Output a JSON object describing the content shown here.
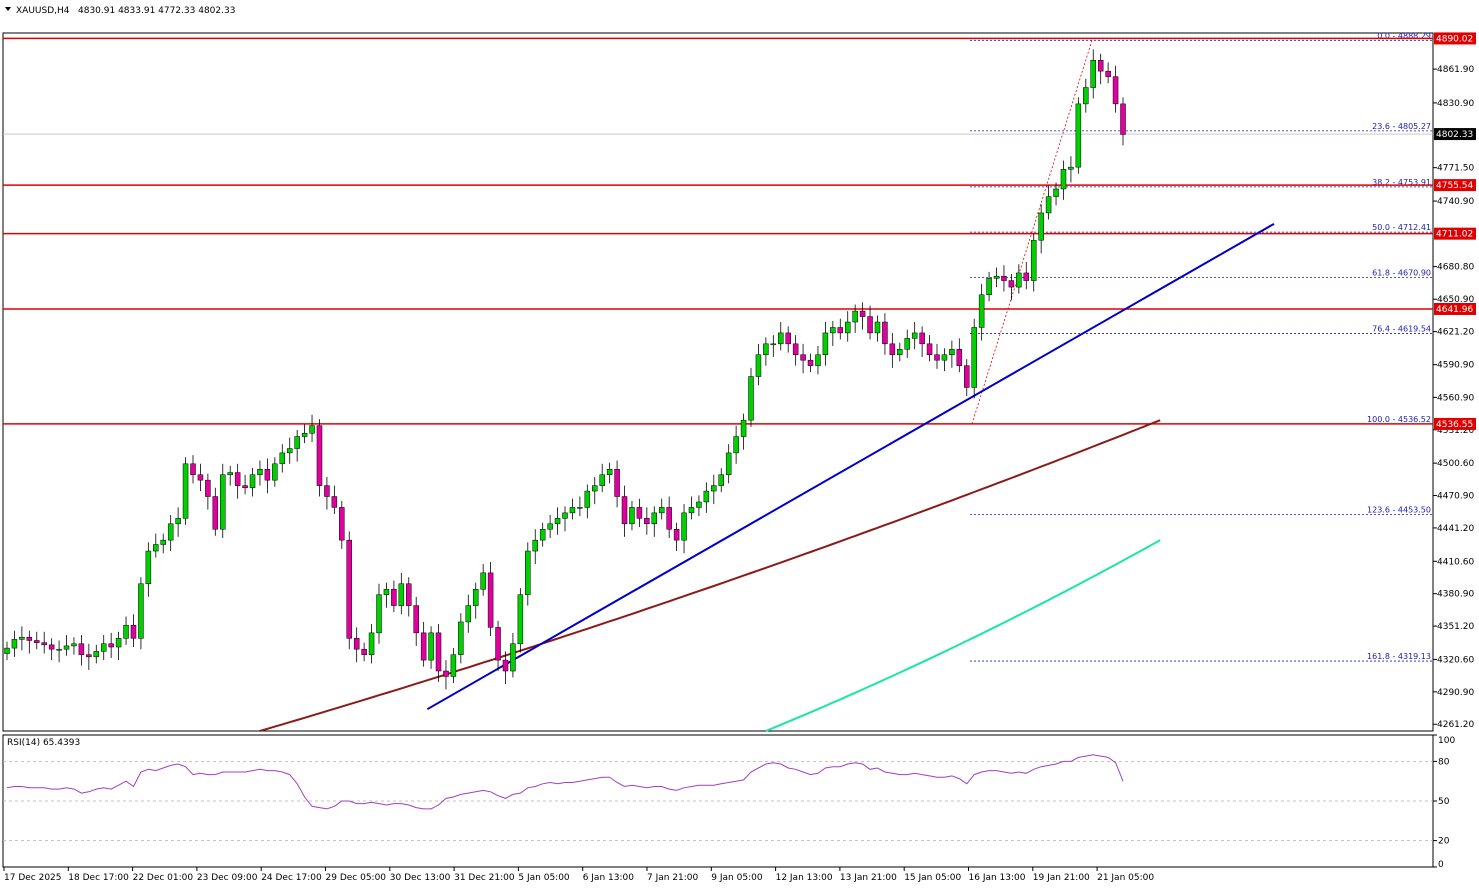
{
  "header": {
    "symbol": "XAUUSD,H4",
    "ohlc": "4830.91 4833.91 4772.33 4802.33"
  },
  "colors": {
    "bull_candle": "#00d000",
    "bear_candle": "#e000a0",
    "support_line": "#e00000",
    "trend_line": "#0000c8",
    "ma_slow": "#8b1a1a",
    "ma_fast": "#19e6a8",
    "fib_line": "#1c1cb4",
    "rsi_line": "#a040c0",
    "price_tag_red": "#e00000",
    "price_tag_black": "#000000"
  },
  "chart_data": {
    "type": "candlestick",
    "symbol": "XAUUSD",
    "timeframe": "H4",
    "ylim": [
      4255,
      4895
    ],
    "y_ticks": [
      "4861.90",
      "4830.90",
      "4771.50",
      "4740.90",
      "4680.80",
      "4650.90",
      "4621.20",
      "4590.90",
      "4560.90",
      "4531.20",
      "4500.60",
      "4470.90",
      "4441.20",
      "4410.60",
      "4380.90",
      "4351.20",
      "4320.60",
      "4290.90",
      "4261.20"
    ],
    "x_labels": [
      "17 Dec 2025",
      "18 Dec 17:00",
      "22 Dec 01:00",
      "23 Dec 09:00",
      "24 Dec 17:00",
      "29 Dec 05:00",
      "30 Dec 13:00",
      "31 Dec 21:00",
      "5 Jan 05:00",
      "6 Jan 13:00",
      "7 Jan 21:00",
      "9 Jan 05:00",
      "12 Jan 13:00",
      "13 Jan 21:00",
      "15 Jan 05:00",
      "16 Jan 13:00",
      "19 Jan 21:00",
      "21 Jan 05:00"
    ],
    "closes": [
      4331,
      4339,
      4341,
      4338,
      4336,
      4334,
      4330,
      4330,
      4333,
      4335,
      4325,
      4323,
      4328,
      4335,
      4332,
      4340,
      4352,
      4340,
      4390,
      4420,
      4426,
      4430,
      4445,
      4450,
      4500,
      4490,
      4485,
      4470,
      4440,
      4490,
      4492,
      4480,
      4478,
      4490,
      4495,
      4485,
      4500,
      4510,
      4514,
      4525,
      4528,
      4535,
      4480,
      4470,
      4460,
      4430,
      4340,
      4330,
      4325,
      4345,
      4380,
      4385,
      4370,
      4390,
      4370,
      4345,
      4320,
      4345,
      4310,
      4305,
      4325,
      4355,
      4370,
      4385,
      4400,
      4350,
      4320,
      4310,
      4335,
      4380,
      4420,
      4430,
      4440,
      4445,
      4450,
      4455,
      4460,
      4460,
      4475,
      4480,
      4490,
      4495,
      4470,
      4445,
      4460,
      4450,
      4445,
      4455,
      4460,
      4440,
      4430,
      4455,
      4460,
      4465,
      4475,
      4480,
      4490,
      4510,
      4525,
      4540,
      4580,
      4600,
      4610,
      4610,
      4620,
      4610,
      4600,
      4595,
      4590,
      4600,
      4620,
      4625,
      4620,
      4630,
      4640,
      4635,
      4620,
      4630,
      4610,
      4600,
      4605,
      4615,
      4620,
      4610,
      4600,
      4595,
      4600,
      4605,
      4590,
      4570,
      4625,
      4655,
      4670,
      4672,
      4668,
      4662,
      4675,
      4668,
      4705,
      4730,
      4745,
      4752,
      4770,
      4772,
      4830,
      4845,
      4870,
      4860,
      4855,
      4830,
      4802
    ],
    "sma_slow": {
      "start_index": 34,
      "values_start": 4255,
      "values_end": 4540
    },
    "sma_fast": {
      "start_index": 102,
      "values_start": 4255,
      "values_end": 4430
    },
    "support_levels": [
      4890.02,
      4755.54,
      4711.02,
      4641.96,
      4536.55
    ],
    "last_price": 4802.33,
    "fibonacci": {
      "high": 4888.29,
      "low": 4536.52,
      "levels": [
        {
          "label": "0.0 - 4888.29",
          "value": 4888.29
        },
        {
          "label": "23.6 - 4805.27",
          "value": 4805.27
        },
        {
          "label": "38.2 - 4753.91",
          "value": 4753.91
        },
        {
          "label": "50.0 - 4712.41",
          "value": 4712.41
        },
        {
          "label": "61.8 - 4670.90",
          "value": 4670.9
        },
        {
          "label": "76.4 - 4619.54",
          "value": 4619.54
        },
        {
          "label": "100.0 - 4536.52",
          "value": 4536.52
        },
        {
          "label": "123.6 - 4453.50",
          "value": 4453.5
        },
        {
          "label": "161.8 - 4319.13",
          "value": 4319.13
        }
      ]
    },
    "trend_line": {
      "start_index": 69,
      "start_value": 4275,
      "end_index": 211,
      "end_value": 4720
    },
    "price_tags": [
      {
        "value": 4890.02,
        "text": "4890.02",
        "style": "red"
      },
      {
        "value": 4802.33,
        "text": "4802.33",
        "style": "black"
      },
      {
        "value": 4755.54,
        "text": "4755.54",
        "style": "red"
      },
      {
        "value": 4711.02,
        "text": "4711.02",
        "style": "red"
      },
      {
        "value": 4641.96,
        "text": "4641.96",
        "style": "red"
      },
      {
        "value": 4536.55,
        "text": "4536.55",
        "style": "red"
      }
    ],
    "rsi": {
      "label": "RSI(14) 65.4393",
      "ylim": [
        0,
        100
      ],
      "ticks": [
        "100",
        "80",
        "50",
        "20",
        "0"
      ],
      "levels": [
        80,
        50,
        20
      ],
      "values": [
        60,
        61,
        61,
        60,
        60,
        60,
        59,
        59,
        60,
        59,
        56,
        57,
        59,
        60,
        59,
        62,
        65,
        61,
        72,
        74,
        73,
        75,
        77,
        78,
        76,
        70,
        71,
        70,
        70,
        72,
        72,
        72,
        72,
        73,
        74,
        73,
        73,
        72,
        70,
        63,
        53,
        46,
        45,
        44,
        46,
        50,
        50,
        48,
        48,
        49,
        48,
        47,
        48,
        48,
        47,
        45,
        44,
        44,
        47,
        52,
        53,
        55,
        56,
        57,
        58,
        57,
        54,
        52,
        55,
        56,
        60,
        61,
        63,
        64,
        63,
        64,
        64,
        65,
        66,
        67,
        68,
        68,
        64,
        61,
        62,
        61,
        60,
        61,
        61,
        59,
        58,
        60,
        61,
        62,
        62,
        62,
        63,
        64,
        65,
        66,
        72,
        75,
        78,
        79,
        78,
        75,
        74,
        72,
        70,
        71,
        75,
        76,
        76,
        78,
        79,
        78,
        74,
        75,
        72,
        71,
        70,
        70,
        71,
        70,
        69,
        68,
        68,
        69,
        67,
        63,
        70,
        72,
        73,
        73,
        72,
        71,
        72,
        71,
        74,
        76,
        77,
        78,
        80,
        80,
        83,
        84,
        85,
        84,
        83,
        79,
        65
      ]
    }
  }
}
